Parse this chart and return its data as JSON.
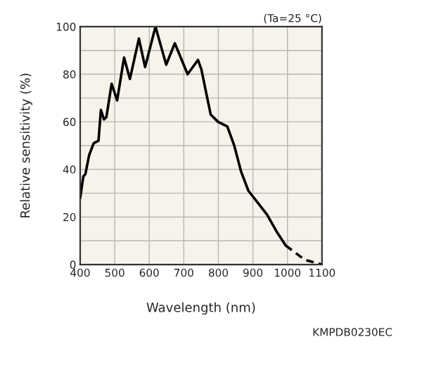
{
  "chart_data": {
    "type": "line",
    "xlabel": "Wavelength (nm)",
    "ylabel": "Relative sensitivity (%)",
    "annotations": [
      "(Ta=25 °C)",
      "KMPDB0230EC"
    ],
    "xlim": [
      400,
      1100
    ],
    "xticks": [
      400,
      500,
      600,
      700,
      800,
      900,
      1000,
      1100
    ],
    "ylim": [
      0,
      100
    ],
    "yticks": [
      0,
      {
        "value": 10,
        "label": null
      },
      20,
      {
        "value": 30,
        "label": null
      },
      40,
      {
        "value": 50,
        "label": null
      },
      60,
      {
        "value": 70,
        "label": null
      },
      80,
      {
        "value": 90,
        "label": null
      },
      100
    ],
    "grid": true,
    "legend": false,
    "marker": "none",
    "series": [
      {
        "color": "#000000",
        "line_style": "solid",
        "x": [
          400,
          409,
          415,
          426,
          439,
          453,
          460,
          469,
          476,
          491,
          507,
          527,
          544,
          570,
          588,
          618,
          649,
          674,
          711,
          741,
          751,
          765,
          778,
          799,
          826,
          846,
          866,
          887,
          914,
          941,
          968,
          995
        ],
        "values": [
          28,
          37,
          38,
          46,
          51,
          52,
          65,
          61,
          62,
          76,
          69,
          87,
          78,
          95,
          83,
          100,
          84,
          93,
          80,
          86,
          82,
          72,
          63,
          60,
          58,
          50,
          39,
          31,
          26,
          21,
          14,
          8
        ]
      },
      {
        "color": "#000000",
        "line_style": "dashed",
        "x": [
          995,
          1050,
          1100
        ],
        "values": [
          8,
          2,
          0
        ]
      }
    ]
  }
}
